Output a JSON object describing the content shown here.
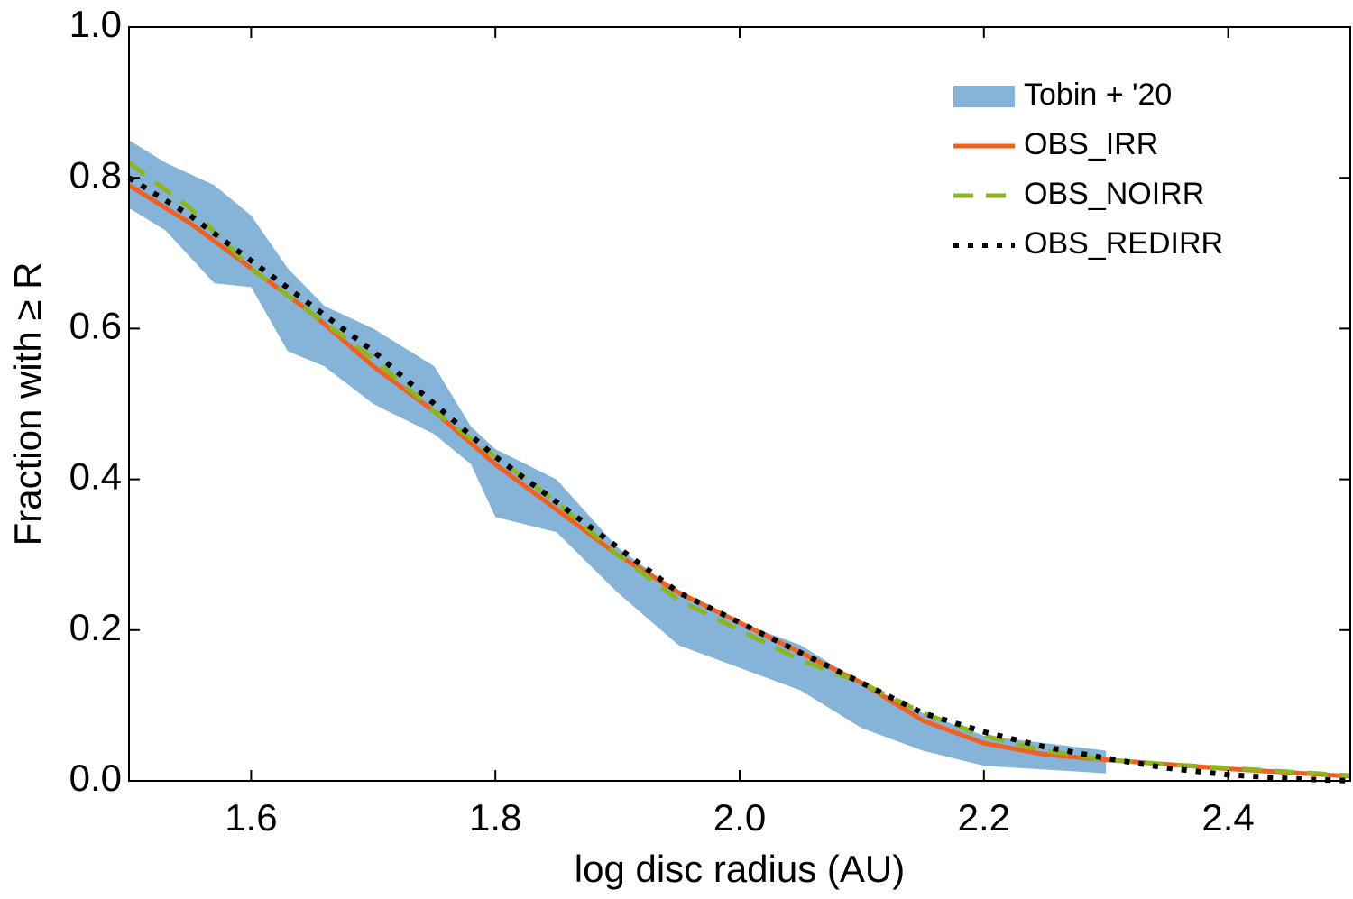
{
  "chart_data": {
    "type": "line",
    "xlabel": "log disc radius (AU)",
    "ylabel": "Fraction with ≥ R",
    "xlim": [
      1.5,
      2.5
    ],
    "ylim": [
      0,
      1
    ],
    "xticks": [
      1.6,
      1.8,
      {
        "value": 2,
        "label": "2.0"
      },
      2.2,
      2.4
    ],
    "yticks": [
      {
        "value": 0,
        "label": "0.0"
      },
      0.2,
      0.4,
      0.6,
      0.8,
      {
        "value": 1,
        "label": "1.0"
      }
    ],
    "legend": "upper right",
    "band": {
      "name": "Tobin + '20",
      "color": "#85b4d8",
      "x": [
        1.5,
        1.53,
        1.57,
        1.6,
        1.63,
        1.66,
        1.7,
        1.75,
        1.78,
        1.8,
        1.85,
        1.9,
        1.95,
        2.0,
        2.05,
        2.1,
        2.15,
        2.2,
        2.3
      ],
      "upper": [
        0.85,
        0.82,
        0.79,
        0.75,
        0.68,
        0.63,
        0.6,
        0.55,
        0.47,
        0.44,
        0.4,
        0.31,
        0.25,
        0.21,
        0.18,
        0.13,
        0.09,
        0.06,
        0.04
      ],
      "lower": [
        0.76,
        0.73,
        0.66,
        0.655,
        0.57,
        0.55,
        0.5,
        0.46,
        0.42,
        0.35,
        0.33,
        0.25,
        0.18,
        0.15,
        0.12,
        0.07,
        0.04,
        0.02,
        0.01
      ]
    },
    "x": [
      1.5,
      1.55,
      1.6,
      1.65,
      1.7,
      1.75,
      1.8,
      1.85,
      1.9,
      1.95,
      2.0,
      2.05,
      2.1,
      2.15,
      2.2,
      2.25,
      2.3,
      2.35,
      2.4,
      2.45,
      2.5
    ],
    "series": [
      {
        "name": "OBS_IRR",
        "color": "#f06020",
        "dash": "solid",
        "values": [
          0.79,
          0.74,
          0.68,
          0.62,
          0.55,
          0.49,
          0.42,
          0.36,
          0.3,
          0.25,
          0.21,
          0.17,
          0.13,
          0.08,
          0.05,
          0.035,
          0.028,
          0.022,
          0.016,
          0.011,
          0.006
        ]
      },
      {
        "name": "OBS_NOIRR",
        "color": "#8db520",
        "dash": "dashed",
        "values": [
          0.82,
          0.76,
          0.68,
          0.62,
          0.56,
          0.49,
          0.43,
          0.37,
          0.3,
          0.24,
          0.2,
          0.16,
          0.13,
          0.09,
          0.06,
          0.04,
          0.028,
          0.022,
          0.017,
          0.012,
          0.007
        ]
      },
      {
        "name": "OBS_REDIRR",
        "color": "#000000",
        "dash": "dotted",
        "values": [
          0.8,
          0.75,
          0.69,
          0.63,
          0.57,
          0.5,
          0.43,
          0.37,
          0.31,
          0.25,
          0.21,
          0.17,
          0.13,
          0.09,
          0.065,
          0.045,
          0.03,
          0.017,
          0.008,
          0.003,
          0
        ]
      }
    ]
  }
}
